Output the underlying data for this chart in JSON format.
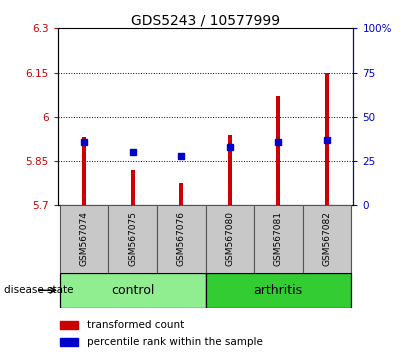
{
  "title": "GDS5243 / 10577999",
  "samples": [
    "GSM567074",
    "GSM567075",
    "GSM567076",
    "GSM567080",
    "GSM567081",
    "GSM567082"
  ],
  "red_values": [
    5.93,
    5.82,
    5.775,
    5.94,
    6.07,
    6.148
  ],
  "blue_values": [
    36,
    30,
    28,
    33,
    36,
    37
  ],
  "ylim_left": [
    5.7,
    6.3
  ],
  "ylim_right": [
    0,
    100
  ],
  "yticks_left": [
    5.7,
    5.85,
    6.0,
    6.15,
    6.3
  ],
  "yticks_right": [
    0,
    25,
    50,
    75,
    100
  ],
  "ytick_labels_left": [
    "5.7",
    "5.85",
    "6",
    "6.15",
    "6.3"
  ],
  "ytick_labels_right": [
    "0",
    "25",
    "50",
    "75",
    "100%"
  ],
  "dotted_lines": [
    5.85,
    6.0,
    6.15
  ],
  "control_color": "#90EE90",
  "arthritis_color": "#33CC33",
  "red_bar_color": "#CC0000",
  "blue_dot_color": "#0000CC",
  "bar_width": 0.08,
  "base_value": 5.7,
  "legend_red": "transformed count",
  "legend_blue": "percentile rank within the sample",
  "disease_state_label": "disease state",
  "control_label": "control",
  "arthritis_label": "arthritis",
  "title_fontsize": 10,
  "tick_fontsize": 7.5,
  "sample_fontsize": 6.5,
  "group_fontsize": 9,
  "legend_fontsize": 7.5
}
